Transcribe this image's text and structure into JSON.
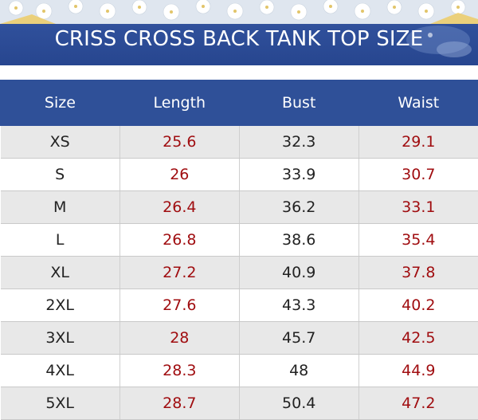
{
  "banner": {
    "title": "CRISS CROSS BACK TANK TOP SIZE"
  },
  "table": {
    "headers": [
      "Size",
      "Length",
      "Bust",
      "Waist"
    ],
    "rows": [
      [
        "XS",
        "25.6",
        "32.3",
        "29.1"
      ],
      [
        "S",
        "26",
        "33.9",
        "30.7"
      ],
      [
        "M",
        "26.4",
        "36.2",
        "33.1"
      ],
      [
        "L",
        "26.8",
        "38.6",
        "35.4"
      ],
      [
        "XL",
        "27.2",
        "40.9",
        "37.8"
      ],
      [
        "2XL",
        "27.6",
        "43.3",
        "40.2"
      ],
      [
        "3XL",
        "28",
        "45.7",
        "42.5"
      ],
      [
        "4XL",
        "28.3",
        "48",
        "44.9"
      ],
      [
        "5XL",
        "28.7",
        "50.4",
        "47.2"
      ]
    ]
  },
  "colors": {
    "header_bg": "#2f5098",
    "accent_red": "#a00d10",
    "row_shade": "#e8e8e8"
  }
}
